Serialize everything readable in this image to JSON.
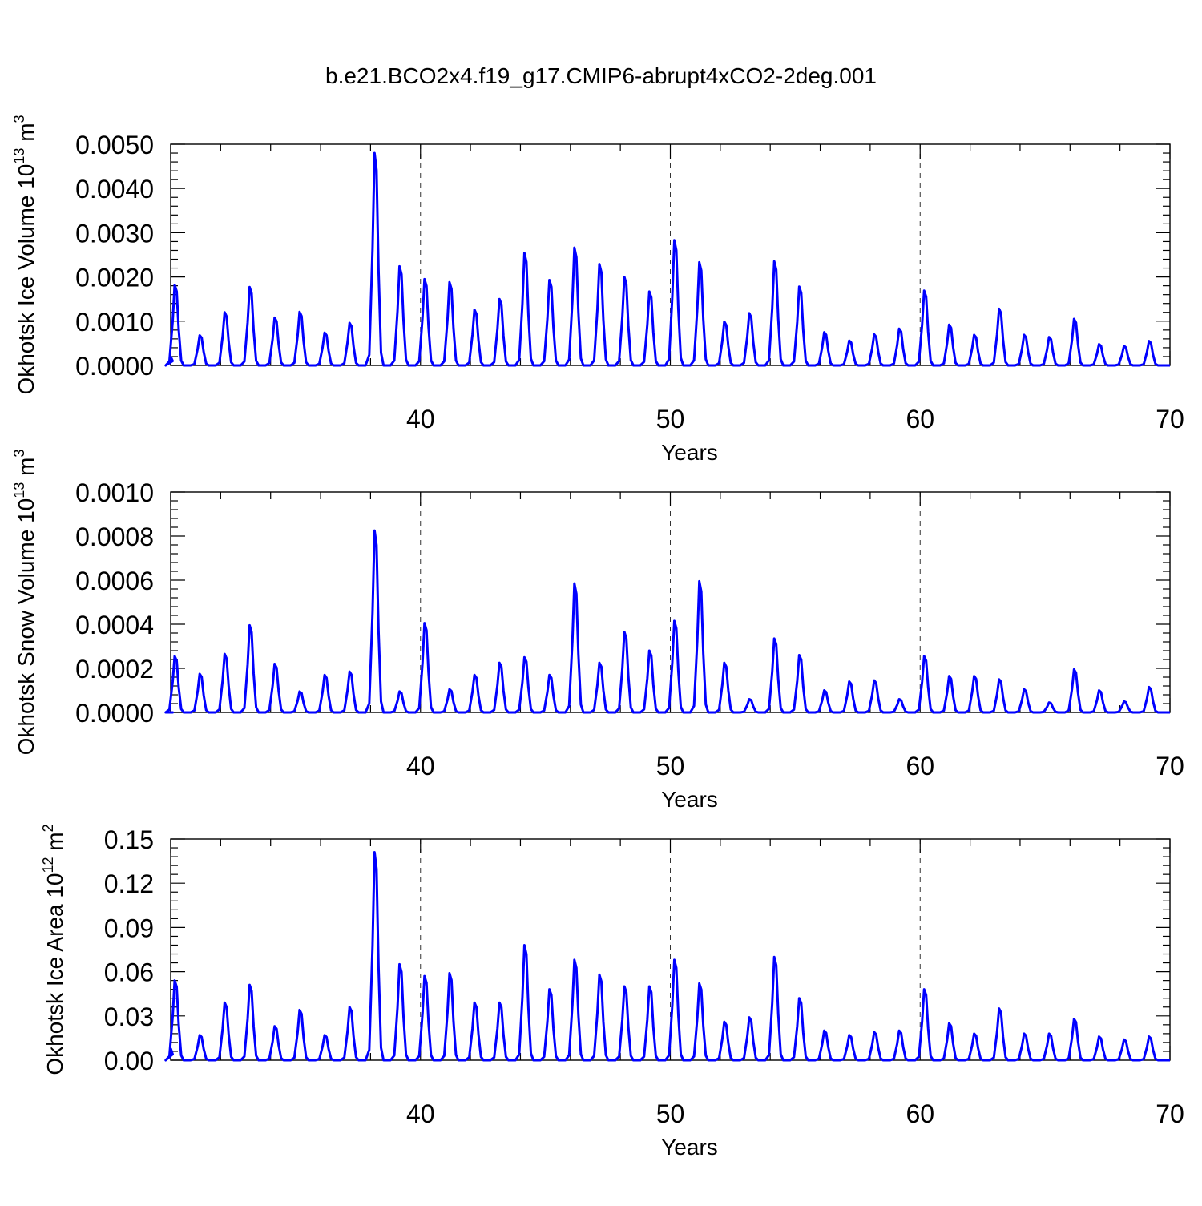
{
  "title": "b.e21.BCO2x4.f19_g17.CMIP6-abrupt4xCO2-2deg.001",
  "series_color": "#0000ff",
  "chart_data": [
    {
      "type": "line",
      "name": "Okhotsk Ice Volume",
      "ylabel": "Okhotsk Ice Volume 10",
      "ylabel_exp": "13",
      "ylabel_unit": "m",
      "ylabel_unit_exp": "3",
      "xlabel": "Years",
      "xlim": [
        30,
        70
      ],
      "ylim": [
        0,
        0.005
      ],
      "xticks": [
        40,
        50,
        60,
        70
      ],
      "xtick_labels": [
        "40",
        "50",
        "60",
        "70"
      ],
      "yticks": [
        0,
        0.001,
        0.002,
        0.003,
        0.004,
        0.005
      ],
      "ytick_labels": [
        "0.0000",
        "0.0010",
        "0.0020",
        "0.0030",
        "0.0040",
        "0.0050"
      ],
      "grid_x": [
        40,
        50,
        60
      ],
      "start_value": 0.0002,
      "peaks": [
        {
          "year": 30.2,
          "value": 0.00182
        },
        {
          "year": 31.2,
          "value": 0.00068
        },
        {
          "year": 32.2,
          "value": 0.0012
        },
        {
          "year": 33.2,
          "value": 0.00177
        },
        {
          "year": 34.2,
          "value": 0.00108
        },
        {
          "year": 35.2,
          "value": 0.00121
        },
        {
          "year": 36.2,
          "value": 0.00074
        },
        {
          "year": 37.2,
          "value": 0.00096
        },
        {
          "year": 38.2,
          "value": 0.0048
        },
        {
          "year": 39.2,
          "value": 0.00224
        },
        {
          "year": 40.2,
          "value": 0.00195
        },
        {
          "year": 41.2,
          "value": 0.00188
        },
        {
          "year": 42.2,
          "value": 0.00126
        },
        {
          "year": 43.2,
          "value": 0.0015
        },
        {
          "year": 44.2,
          "value": 0.00254
        },
        {
          "year": 45.2,
          "value": 0.00193
        },
        {
          "year": 46.2,
          "value": 0.00266
        },
        {
          "year": 47.2,
          "value": 0.00229
        },
        {
          "year": 48.2,
          "value": 0.002
        },
        {
          "year": 49.2,
          "value": 0.00167
        },
        {
          "year": 50.2,
          "value": 0.00283
        },
        {
          "year": 51.2,
          "value": 0.00233
        },
        {
          "year": 52.2,
          "value": 0.00099
        },
        {
          "year": 53.2,
          "value": 0.00118
        },
        {
          "year": 54.2,
          "value": 0.00235
        },
        {
          "year": 55.2,
          "value": 0.00178
        },
        {
          "year": 56.2,
          "value": 0.00075
        },
        {
          "year": 57.2,
          "value": 0.00056
        },
        {
          "year": 58.2,
          "value": 0.0007
        },
        {
          "year": 59.2,
          "value": 0.00083
        },
        {
          "year": 60.2,
          "value": 0.00169
        },
        {
          "year": 61.2,
          "value": 0.00092
        },
        {
          "year": 62.2,
          "value": 0.00069
        },
        {
          "year": 63.2,
          "value": 0.00128
        },
        {
          "year": 64.2,
          "value": 0.00069
        },
        {
          "year": 65.2,
          "value": 0.00064
        },
        {
          "year": 66.2,
          "value": 0.00105
        },
        {
          "year": 67.2,
          "value": 0.00048
        },
        {
          "year": 68.2,
          "value": 0.00044
        },
        {
          "year": 69.2,
          "value": 0.00055
        }
      ]
    },
    {
      "type": "line",
      "name": "Okhotsk Snow Volume",
      "ylabel": "Okhotsk Snow Volume 10",
      "ylabel_exp": "13",
      "ylabel_unit": "m",
      "ylabel_unit_exp": "3",
      "xlabel": "Years",
      "xlim": [
        30,
        70
      ],
      "ylim": [
        0,
        0.001
      ],
      "xticks": [
        40,
        50,
        60,
        70
      ],
      "xtick_labels": [
        "40",
        "50",
        "60",
        "70"
      ],
      "yticks": [
        0,
        0.0002,
        0.0004,
        0.0006,
        0.0008,
        0.001
      ],
      "ytick_labels": [
        "0.0000",
        "0.0002",
        "0.0004",
        "0.0006",
        "0.0008",
        "0.0010"
      ],
      "grid_x": [
        40,
        50,
        60
      ],
      "start_value": 0.0,
      "peaks": [
        {
          "year": 30.2,
          "value": 0.000255
        },
        {
          "year": 31.2,
          "value": 0.000175
        },
        {
          "year": 32.2,
          "value": 0.000265
        },
        {
          "year": 33.2,
          "value": 0.000395
        },
        {
          "year": 34.2,
          "value": 0.00022
        },
        {
          "year": 35.2,
          "value": 9.5e-05
        },
        {
          "year": 36.2,
          "value": 0.00017
        },
        {
          "year": 37.2,
          "value": 0.000185
        },
        {
          "year": 38.2,
          "value": 0.000825
        },
        {
          "year": 39.2,
          "value": 9.5e-05
        },
        {
          "year": 40.2,
          "value": 0.000405
        },
        {
          "year": 41.2,
          "value": 0.000105
        },
        {
          "year": 42.2,
          "value": 0.00017
        },
        {
          "year": 43.2,
          "value": 0.000225
        },
        {
          "year": 44.2,
          "value": 0.00025
        },
        {
          "year": 45.2,
          "value": 0.00017
        },
        {
          "year": 46.2,
          "value": 0.000585
        },
        {
          "year": 47.2,
          "value": 0.000225
        },
        {
          "year": 48.2,
          "value": 0.000365
        },
        {
          "year": 49.2,
          "value": 0.00028
        },
        {
          "year": 50.2,
          "value": 0.000415
        },
        {
          "year": 51.2,
          "value": 0.000595
        },
        {
          "year": 52.2,
          "value": 0.000225
        },
        {
          "year": 53.2,
          "value": 6e-05
        },
        {
          "year": 54.2,
          "value": 0.000335
        },
        {
          "year": 55.2,
          "value": 0.00026
        },
        {
          "year": 56.2,
          "value": 0.0001
        },
        {
          "year": 57.2,
          "value": 0.00014
        },
        {
          "year": 58.2,
          "value": 0.000145
        },
        {
          "year": 59.2,
          "value": 6e-05
        },
        {
          "year": 60.2,
          "value": 0.000255
        },
        {
          "year": 61.2,
          "value": 0.000165
        },
        {
          "year": 62.2,
          "value": 0.000165
        },
        {
          "year": 63.2,
          "value": 0.00015
        },
        {
          "year": 64.2,
          "value": 0.000105
        },
        {
          "year": 65.2,
          "value": 4.5e-05
        },
        {
          "year": 66.2,
          "value": 0.000195
        },
        {
          "year": 67.2,
          "value": 0.0001
        },
        {
          "year": 68.2,
          "value": 5e-05
        },
        {
          "year": 69.2,
          "value": 0.000115
        }
      ]
    },
    {
      "type": "line",
      "name": "Okhotsk Ice Area",
      "ylabel": "Okhotsk Ice Area 10",
      "ylabel_exp": "12",
      "ylabel_unit": "m",
      "ylabel_unit_exp": "2",
      "xlabel": "Years",
      "xlim": [
        30,
        70
      ],
      "ylim": [
        0,
        0.15
      ],
      "xticks": [
        40,
        50,
        60,
        70
      ],
      "xtick_labels": [
        "40",
        "50",
        "60",
        "70"
      ],
      "yticks": [
        0,
        0.03,
        0.06,
        0.09,
        0.12,
        0.15
      ],
      "ytick_labels": [
        "0.00",
        "0.03",
        "0.06",
        "0.09",
        "0.12",
        "0.15"
      ],
      "grid_x": [
        40,
        50,
        60
      ],
      "start_value": 0.008,
      "peaks": [
        {
          "year": 30.2,
          "value": 0.054
        },
        {
          "year": 31.2,
          "value": 0.017
        },
        {
          "year": 32.2,
          "value": 0.039
        },
        {
          "year": 33.2,
          "value": 0.051
        },
        {
          "year": 34.2,
          "value": 0.023
        },
        {
          "year": 35.2,
          "value": 0.034
        },
        {
          "year": 36.2,
          "value": 0.017
        },
        {
          "year": 37.2,
          "value": 0.036
        },
        {
          "year": 38.2,
          "value": 0.141
        },
        {
          "year": 39.2,
          "value": 0.065
        },
        {
          "year": 40.2,
          "value": 0.057
        },
        {
          "year": 41.2,
          "value": 0.059
        },
        {
          "year": 42.2,
          "value": 0.039
        },
        {
          "year": 43.2,
          "value": 0.039
        },
        {
          "year": 44.2,
          "value": 0.078
        },
        {
          "year": 45.2,
          "value": 0.048
        },
        {
          "year": 46.2,
          "value": 0.068
        },
        {
          "year": 47.2,
          "value": 0.058
        },
        {
          "year": 48.2,
          "value": 0.05
        },
        {
          "year": 49.2,
          "value": 0.05
        },
        {
          "year": 50.2,
          "value": 0.068
        },
        {
          "year": 51.2,
          "value": 0.052
        },
        {
          "year": 52.2,
          "value": 0.026
        },
        {
          "year": 53.2,
          "value": 0.029
        },
        {
          "year": 54.2,
          "value": 0.07
        },
        {
          "year": 55.2,
          "value": 0.042
        },
        {
          "year": 56.2,
          "value": 0.02
        },
        {
          "year": 57.2,
          "value": 0.017
        },
        {
          "year": 58.2,
          "value": 0.019
        },
        {
          "year": 59.2,
          "value": 0.02
        },
        {
          "year": 60.2,
          "value": 0.048
        },
        {
          "year": 61.2,
          "value": 0.025
        },
        {
          "year": 62.2,
          "value": 0.018
        },
        {
          "year": 63.2,
          "value": 0.035
        },
        {
          "year": 64.2,
          "value": 0.018
        },
        {
          "year": 65.2,
          "value": 0.018
        },
        {
          "year": 66.2,
          "value": 0.028
        },
        {
          "year": 67.2,
          "value": 0.016
        },
        {
          "year": 68.2,
          "value": 0.014
        },
        {
          "year": 69.2,
          "value": 0.016
        }
      ]
    }
  ]
}
